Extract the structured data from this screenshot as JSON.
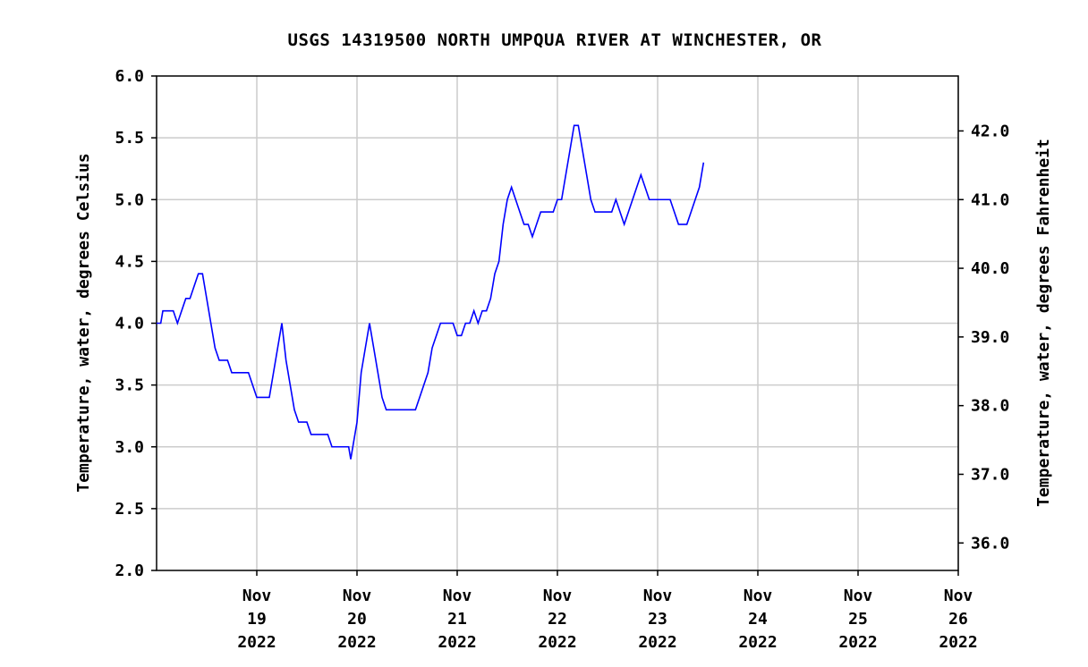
{
  "chart_data": {
    "type": "line",
    "title": "USGS 14319500 NORTH UMPQUA RIVER AT WINCHESTER, OR",
    "ylabel_left": "Temperature, water, degrees Celsius",
    "ylabel_right": "Temperature, water, degrees Fahrenheit",
    "xlim": [
      "2022-11-18 00:00",
      "2022-11-26 00:00"
    ],
    "ylim_left": [
      2.0,
      6.0
    ],
    "ylim_right_f": [
      35.6,
      42.8
    ],
    "yticks_left": [
      "6.0",
      "5.5",
      "5.0",
      "4.5",
      "4.0",
      "3.5",
      "3.0",
      "2.5",
      "2.0"
    ],
    "yticks_right": [
      "42.0",
      "41.0",
      "40.0",
      "39.0",
      "38.0",
      "37.0",
      "36.0"
    ],
    "xtick_labels": [
      {
        "x": "2022-11-19",
        "lines": [
          "Nov",
          "19",
          "2022"
        ]
      },
      {
        "x": "2022-11-20",
        "lines": [
          "Nov",
          "20",
          "2022"
        ]
      },
      {
        "x": "2022-11-21",
        "lines": [
          "Nov",
          "21",
          "2022"
        ]
      },
      {
        "x": "2022-11-22",
        "lines": [
          "Nov",
          "22",
          "2022"
        ]
      },
      {
        "x": "2022-11-23",
        "lines": [
          "Nov",
          "23",
          "2022"
        ]
      },
      {
        "x": "2022-11-24",
        "lines": [
          "Nov",
          "24",
          "2022"
        ]
      },
      {
        "x": "2022-11-25",
        "lines": [
          "Nov",
          "25",
          "2022"
        ]
      },
      {
        "x": "2022-11-26",
        "lines": [
          "Nov",
          "26",
          "2022"
        ]
      }
    ],
    "grid": true,
    "series": [
      {
        "color": "#0000ff",
        "points": [
          [
            "2022-11-18 00:00",
            4.0
          ],
          [
            "2022-11-18 01:00",
            4.0
          ],
          [
            "2022-11-18 01:30",
            4.1
          ],
          [
            "2022-11-18 04:00",
            4.1
          ],
          [
            "2022-11-18 05:00",
            4.0
          ],
          [
            "2022-11-18 06:00",
            4.1
          ],
          [
            "2022-11-18 07:00",
            4.2
          ],
          [
            "2022-11-18 08:00",
            4.2
          ],
          [
            "2022-11-18 09:00",
            4.3
          ],
          [
            "2022-11-18 10:00",
            4.4
          ],
          [
            "2022-11-18 11:00",
            4.4
          ],
          [
            "2022-11-18 12:00",
            4.2
          ],
          [
            "2022-11-18 13:00",
            4.0
          ],
          [
            "2022-11-18 14:00",
            3.8
          ],
          [
            "2022-11-18 15:00",
            3.7
          ],
          [
            "2022-11-18 17:00",
            3.7
          ],
          [
            "2022-11-18 18:00",
            3.6
          ],
          [
            "2022-11-18 22:00",
            3.6
          ],
          [
            "2022-11-18 23:00",
            3.5
          ],
          [
            "2022-11-19 00:00",
            3.4
          ],
          [
            "2022-11-19 03:00",
            3.4
          ],
          [
            "2022-11-19 04:00",
            3.6
          ],
          [
            "2022-11-19 05:00",
            3.8
          ],
          [
            "2022-11-19 06:00",
            4.0
          ],
          [
            "2022-11-19 07:00",
            3.7
          ],
          [
            "2022-11-19 08:00",
            3.5
          ],
          [
            "2022-11-19 09:00",
            3.3
          ],
          [
            "2022-11-19 10:00",
            3.2
          ],
          [
            "2022-11-19 12:00",
            3.2
          ],
          [
            "2022-11-19 13:00",
            3.1
          ],
          [
            "2022-11-19 17:00",
            3.1
          ],
          [
            "2022-11-19 18:00",
            3.0
          ],
          [
            "2022-11-19 22:00",
            3.0
          ],
          [
            "2022-11-19 22:30",
            2.9
          ],
          [
            "2022-11-19 23:00",
            3.0
          ],
          [
            "2022-11-20 00:00",
            3.2
          ],
          [
            "2022-11-20 01:00",
            3.6
          ],
          [
            "2022-11-20 02:00",
            3.8
          ],
          [
            "2022-11-20 03:00",
            4.0
          ],
          [
            "2022-11-20 04:00",
            3.8
          ],
          [
            "2022-11-20 05:00",
            3.6
          ],
          [
            "2022-11-20 06:00",
            3.4
          ],
          [
            "2022-11-20 07:00",
            3.3
          ],
          [
            "2022-11-20 14:00",
            3.3
          ],
          [
            "2022-11-20 15:00",
            3.4
          ],
          [
            "2022-11-20 16:00",
            3.5
          ],
          [
            "2022-11-20 17:00",
            3.6
          ],
          [
            "2022-11-20 18:00",
            3.8
          ],
          [
            "2022-11-20 19:00",
            3.9
          ],
          [
            "2022-11-20 20:00",
            4.0
          ],
          [
            "2022-11-20 23:00",
            4.0
          ],
          [
            "2022-11-21 00:00",
            3.9
          ],
          [
            "2022-11-21 01:00",
            3.9
          ],
          [
            "2022-11-21 02:00",
            4.0
          ],
          [
            "2022-11-21 03:00",
            4.0
          ],
          [
            "2022-11-21 04:00",
            4.1
          ],
          [
            "2022-11-21 05:00",
            4.0
          ],
          [
            "2022-11-21 06:00",
            4.1
          ],
          [
            "2022-11-21 07:00",
            4.1
          ],
          [
            "2022-11-21 08:00",
            4.2
          ],
          [
            "2022-11-21 09:00",
            4.4
          ],
          [
            "2022-11-21 10:00",
            4.5
          ],
          [
            "2022-11-21 11:00",
            4.8
          ],
          [
            "2022-11-21 12:00",
            5.0
          ],
          [
            "2022-11-21 13:00",
            5.1
          ],
          [
            "2022-11-21 14:00",
            5.0
          ],
          [
            "2022-11-21 15:00",
            4.9
          ],
          [
            "2022-11-21 16:00",
            4.8
          ],
          [
            "2022-11-21 17:00",
            4.8
          ],
          [
            "2022-11-21 18:00",
            4.7
          ],
          [
            "2022-11-21 19:00",
            4.8
          ],
          [
            "2022-11-21 20:00",
            4.9
          ],
          [
            "2022-11-21 23:00",
            4.9
          ],
          [
            "2022-11-22 00:00",
            5.0
          ],
          [
            "2022-11-22 01:00",
            5.0
          ],
          [
            "2022-11-22 02:00",
            5.2
          ],
          [
            "2022-11-22 03:00",
            5.4
          ],
          [
            "2022-11-22 04:00",
            5.6
          ],
          [
            "2022-11-22 05:00",
            5.6
          ],
          [
            "2022-11-22 06:00",
            5.4
          ],
          [
            "2022-11-22 07:00",
            5.2
          ],
          [
            "2022-11-22 08:00",
            5.0
          ],
          [
            "2022-11-22 09:00",
            4.9
          ],
          [
            "2022-11-22 13:00",
            4.9
          ],
          [
            "2022-11-22 14:00",
            5.0
          ],
          [
            "2022-11-22 15:00",
            4.9
          ],
          [
            "2022-11-22 16:00",
            4.8
          ],
          [
            "2022-11-22 17:00",
            4.9
          ],
          [
            "2022-11-22 18:00",
            5.0
          ],
          [
            "2022-11-22 19:00",
            5.1
          ],
          [
            "2022-11-22 20:00",
            5.2
          ],
          [
            "2022-11-22 21:00",
            5.1
          ],
          [
            "2022-11-22 22:00",
            5.0
          ],
          [
            "2022-11-23 03:00",
            5.0
          ],
          [
            "2022-11-23 04:00",
            4.9
          ],
          [
            "2022-11-23 05:00",
            4.8
          ],
          [
            "2022-11-23 07:00",
            4.8
          ],
          [
            "2022-11-23 08:00",
            4.9
          ],
          [
            "2022-11-23 09:00",
            5.0
          ],
          [
            "2022-11-23 10:00",
            5.1
          ],
          [
            "2022-11-23 11:00",
            5.3
          ]
        ]
      }
    ]
  }
}
